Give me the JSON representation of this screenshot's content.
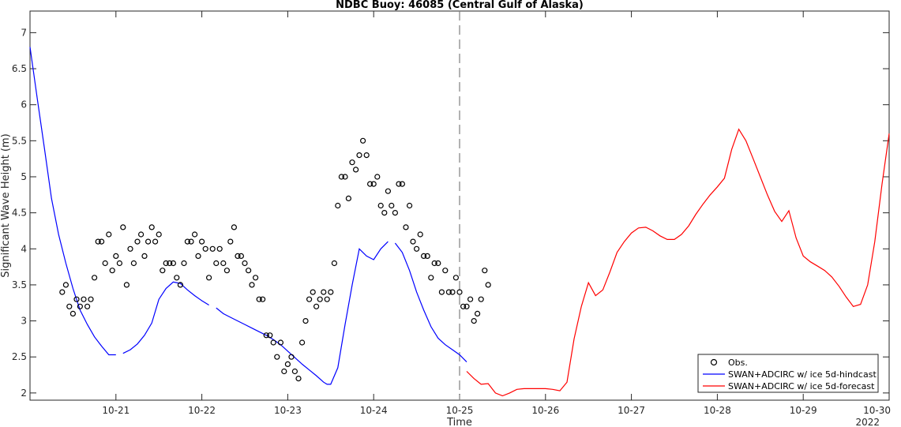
{
  "chart_data": {
    "type": "line",
    "title": "NDBC Buoy: 46085 (Central Gulf of Alaska)",
    "xlabel": "Time",
    "ylabel": "Significant Wave Height (m)",
    "year_label": "2022",
    "xlim": [
      20.0,
      30.0
    ],
    "ylim": [
      1.9,
      7.3
    ],
    "x_ticks": [
      {
        "value": 21,
        "label": "10-21"
      },
      {
        "value": 22,
        "label": "10-22"
      },
      {
        "value": 23,
        "label": "10-23"
      },
      {
        "value": 24,
        "label": "10-24"
      },
      {
        "value": 25,
        "label": "10-25"
      },
      {
        "value": 26,
        "label": "10-26"
      },
      {
        "value": 27,
        "label": "10-27"
      },
      {
        "value": 28,
        "label": "10-28"
      },
      {
        "value": 29,
        "label": "10-29"
      },
      {
        "value": 30,
        "label": "10-30"
      }
    ],
    "y_ticks": [
      {
        "value": 2,
        "label": "2"
      },
      {
        "value": 2.5,
        "label": "2.5"
      },
      {
        "value": 3,
        "label": "3"
      },
      {
        "value": 3.5,
        "label": "3.5"
      },
      {
        "value": 4,
        "label": "4"
      },
      {
        "value": 4.5,
        "label": "4.5"
      },
      {
        "value": 5,
        "label": "5"
      },
      {
        "value": 5.5,
        "label": "5.5"
      },
      {
        "value": 6,
        "label": "6"
      },
      {
        "value": 6.5,
        "label": "6.5"
      },
      {
        "value": 7,
        "label": "7"
      }
    ],
    "vline_x": 25.0,
    "legend_position": "bottom-right",
    "grid": false,
    "series": [
      {
        "name": "Obs.",
        "kind": "scatter",
        "color": "#000000",
        "points": [
          [
            20.375,
            3.4
          ],
          [
            20.417,
            3.5
          ],
          [
            20.458,
            3.2
          ],
          [
            20.5,
            3.1
          ],
          [
            20.542,
            3.3
          ],
          [
            20.583,
            3.2
          ],
          [
            20.625,
            3.3
          ],
          [
            20.667,
            3.2
          ],
          [
            20.708,
            3.3
          ],
          [
            20.75,
            3.6
          ],
          [
            20.792,
            4.1
          ],
          [
            20.833,
            4.1
          ],
          [
            20.875,
            3.8
          ],
          [
            20.917,
            4.2
          ],
          [
            20.958,
            3.7
          ],
          [
            21.0,
            3.9
          ],
          [
            21.042,
            3.8
          ],
          [
            21.083,
            4.3
          ],
          [
            21.125,
            3.5
          ],
          [
            21.167,
            4.0
          ],
          [
            21.208,
            3.8
          ],
          [
            21.25,
            4.1
          ],
          [
            21.292,
            4.2
          ],
          [
            21.333,
            3.9
          ],
          [
            21.375,
            4.1
          ],
          [
            21.417,
            4.3
          ],
          [
            21.458,
            4.1
          ],
          [
            21.5,
            4.2
          ],
          [
            21.542,
            3.7
          ],
          [
            21.583,
            3.8
          ],
          [
            21.625,
            3.8
          ],
          [
            21.667,
            3.8
          ],
          [
            21.708,
            3.6
          ],
          [
            21.75,
            3.5
          ],
          [
            21.792,
            3.8
          ],
          [
            21.833,
            4.1
          ],
          [
            21.875,
            4.1
          ],
          [
            21.917,
            4.2
          ],
          [
            21.958,
            3.9
          ],
          [
            22.0,
            4.1
          ],
          [
            22.042,
            4.0
          ],
          [
            22.083,
            3.6
          ],
          [
            22.125,
            4.0
          ],
          [
            22.167,
            3.8
          ],
          [
            22.208,
            4.0
          ],
          [
            22.25,
            3.8
          ],
          [
            22.292,
            3.7
          ],
          [
            22.333,
            4.1
          ],
          [
            22.375,
            4.3
          ],
          [
            22.417,
            3.9
          ],
          [
            22.458,
            3.9
          ],
          [
            22.5,
            3.8
          ],
          [
            22.542,
            3.7
          ],
          [
            22.583,
            3.5
          ],
          [
            22.625,
            3.6
          ],
          [
            22.667,
            3.3
          ],
          [
            22.708,
            3.3
          ],
          [
            22.75,
            2.8
          ],
          [
            22.792,
            2.8
          ],
          [
            22.833,
            2.7
          ],
          [
            22.875,
            2.5
          ],
          [
            22.917,
            2.7
          ],
          [
            22.958,
            2.3
          ],
          [
            23.0,
            2.4
          ],
          [
            23.042,
            2.5
          ],
          [
            23.083,
            2.3
          ],
          [
            23.125,
            2.2
          ],
          [
            23.167,
            2.7
          ],
          [
            23.208,
            3.0
          ],
          [
            23.25,
            3.3
          ],
          [
            23.292,
            3.4
          ],
          [
            23.333,
            3.2
          ],
          [
            23.375,
            3.3
          ],
          [
            23.417,
            3.4
          ],
          [
            23.458,
            3.3
          ],
          [
            23.5,
            3.4
          ],
          [
            23.542,
            3.8
          ],
          [
            23.583,
            4.6
          ],
          [
            23.625,
            5.0
          ],
          [
            23.667,
            5.0
          ],
          [
            23.708,
            4.7
          ],
          [
            23.75,
            5.2
          ],
          [
            23.792,
            5.1
          ],
          [
            23.833,
            5.3
          ],
          [
            23.875,
            5.5
          ],
          [
            23.917,
            5.3
          ],
          [
            23.958,
            4.9
          ],
          [
            24.0,
            4.9
          ],
          [
            24.042,
            5.0
          ],
          [
            24.083,
            4.6
          ],
          [
            24.125,
            4.5
          ],
          [
            24.167,
            4.8
          ],
          [
            24.208,
            4.6
          ],
          [
            24.25,
            4.5
          ],
          [
            24.292,
            4.9
          ],
          [
            24.333,
            4.9
          ],
          [
            24.375,
            4.3
          ],
          [
            24.417,
            4.6
          ],
          [
            24.458,
            4.1
          ],
          [
            24.5,
            4.0
          ],
          [
            24.542,
            4.2
          ],
          [
            24.583,
            3.9
          ],
          [
            24.625,
            3.9
          ],
          [
            24.667,
            3.6
          ],
          [
            24.708,
            3.8
          ],
          [
            24.75,
            3.8
          ],
          [
            24.792,
            3.4
          ],
          [
            24.833,
            3.7
          ],
          [
            24.875,
            3.4
          ],
          [
            24.917,
            3.4
          ],
          [
            24.958,
            3.6
          ],
          [
            25.0,
            3.4
          ],
          [
            25.042,
            3.2
          ],
          [
            25.083,
            3.2
          ],
          [
            25.125,
            3.3
          ],
          [
            25.167,
            3.0
          ],
          [
            25.208,
            3.1
          ],
          [
            25.25,
            3.3
          ],
          [
            25.292,
            3.7
          ],
          [
            25.333,
            3.5
          ]
        ]
      },
      {
        "name": "SWAN+ADCIRC w/ ice 5d-hindcast",
        "kind": "line",
        "color": "#0000ff",
        "segments": [
          [
            [
              20.0,
              6.8
            ],
            [
              20.083,
              6.1
            ],
            [
              20.167,
              5.4
            ],
            [
              20.25,
              4.7
            ],
            [
              20.333,
              4.2
            ],
            [
              20.417,
              3.8
            ],
            [
              20.5,
              3.45
            ],
            [
              20.583,
              3.15
            ],
            [
              20.667,
              2.95
            ],
            [
              20.75,
              2.78
            ],
            [
              20.833,
              2.65
            ],
            [
              20.917,
              2.53
            ],
            [
              21.0,
              2.53
            ]
          ],
          [
            [
              21.083,
              2.55
            ],
            [
              21.167,
              2.6
            ],
            [
              21.25,
              2.68
            ],
            [
              21.333,
              2.8
            ],
            [
              21.417,
              2.97
            ],
            [
              21.5,
              3.3
            ],
            [
              21.583,
              3.45
            ],
            [
              21.667,
              3.54
            ],
            [
              21.75,
              3.52
            ],
            [
              21.833,
              3.43
            ],
            [
              21.917,
              3.35
            ],
            [
              22.0,
              3.28
            ],
            [
              22.083,
              3.22
            ]
          ],
          [
            [
              22.167,
              3.18
            ],
            [
              22.25,
              3.1
            ],
            [
              22.333,
              3.05
            ],
            [
              22.417,
              3.0
            ],
            [
              22.5,
              2.95
            ],
            [
              22.583,
              2.9
            ],
            [
              22.667,
              2.85
            ],
            [
              22.75,
              2.8
            ],
            [
              22.833,
              2.74
            ],
            [
              22.917,
              2.67
            ],
            [
              23.0,
              2.58
            ],
            [
              23.083,
              2.49
            ],
            [
              23.167,
              2.4
            ],
            [
              23.25,
              2.32
            ],
            [
              23.333,
              2.24
            ],
            [
              23.417,
              2.15
            ],
            [
              23.458,
              2.12
            ],
            [
              23.5,
              2.12
            ],
            [
              23.583,
              2.35
            ],
            [
              23.667,
              2.95
            ],
            [
              23.75,
              3.5
            ],
            [
              23.833,
              4.0
            ],
            [
              23.917,
              3.9
            ],
            [
              24.0,
              3.85
            ],
            [
              24.083,
              4.0
            ],
            [
              24.167,
              4.1
            ]
          ],
          [
            [
              24.25,
              4.08
            ],
            [
              24.333,
              3.95
            ],
            [
              24.417,
              3.7
            ],
            [
              24.5,
              3.4
            ],
            [
              24.583,
              3.15
            ],
            [
              24.667,
              2.92
            ],
            [
              24.75,
              2.76
            ],
            [
              24.833,
              2.67
            ],
            [
              24.917,
              2.6
            ],
            [
              25.0,
              2.53
            ],
            [
              25.083,
              2.43
            ]
          ]
        ]
      },
      {
        "name": "SWAN+ADCIRC w/ ice 5d-forecast",
        "kind": "line",
        "color": "#ff0000",
        "segments": [
          [
            [
              25.083,
              2.3
            ],
            [
              25.167,
              2.2
            ],
            [
              25.25,
              2.12
            ],
            [
              25.333,
              2.13
            ],
            [
              25.417,
              2.0
            ],
            [
              25.5,
              1.96
            ],
            [
              25.583,
              2.0
            ],
            [
              25.667,
              2.05
            ],
            [
              25.75,
              2.06
            ],
            [
              25.833,
              2.06
            ],
            [
              25.917,
              2.06
            ],
            [
              26.0,
              2.06
            ],
            [
              26.083,
              2.05
            ],
            [
              26.167,
              2.03
            ],
            [
              26.25,
              2.15
            ],
            [
              26.333,
              2.75
            ],
            [
              26.417,
              3.2
            ],
            [
              26.5,
              3.53
            ],
            [
              26.583,
              3.35
            ],
            [
              26.667,
              3.43
            ],
            [
              26.75,
              3.68
            ],
            [
              26.833,
              3.95
            ],
            [
              26.917,
              4.1
            ],
            [
              27.0,
              4.22
            ],
            [
              27.083,
              4.29
            ],
            [
              27.167,
              4.3
            ],
            [
              27.25,
              4.25
            ],
            [
              27.333,
              4.18
            ],
            [
              27.417,
              4.13
            ],
            [
              27.5,
              4.13
            ],
            [
              27.583,
              4.2
            ],
            [
              27.667,
              4.32
            ],
            [
              27.75,
              4.48
            ],
            [
              27.833,
              4.62
            ],
            [
              27.917,
              4.75
            ],
            [
              28.0,
              4.86
            ],
            [
              28.083,
              4.98
            ],
            [
              28.167,
              5.38
            ],
            [
              28.25,
              5.66
            ],
            [
              28.333,
              5.5
            ],
            [
              28.417,
              5.25
            ],
            [
              28.5,
              5.0
            ],
            [
              28.583,
              4.75
            ],
            [
              28.667,
              4.52
            ],
            [
              28.75,
              4.38
            ],
            [
              28.833,
              4.53
            ],
            [
              28.917,
              4.15
            ],
            [
              29.0,
              3.9
            ],
            [
              29.083,
              3.82
            ],
            [
              29.167,
              3.76
            ],
            [
              29.25,
              3.7
            ],
            [
              29.333,
              3.61
            ],
            [
              29.417,
              3.48
            ],
            [
              29.5,
              3.33
            ],
            [
              29.583,
              3.2
            ],
            [
              29.667,
              3.23
            ],
            [
              29.75,
              3.5
            ],
            [
              29.833,
              4.1
            ],
            [
              29.917,
              4.9
            ],
            [
              30.0,
              5.6
            ]
          ]
        ]
      }
    ]
  }
}
